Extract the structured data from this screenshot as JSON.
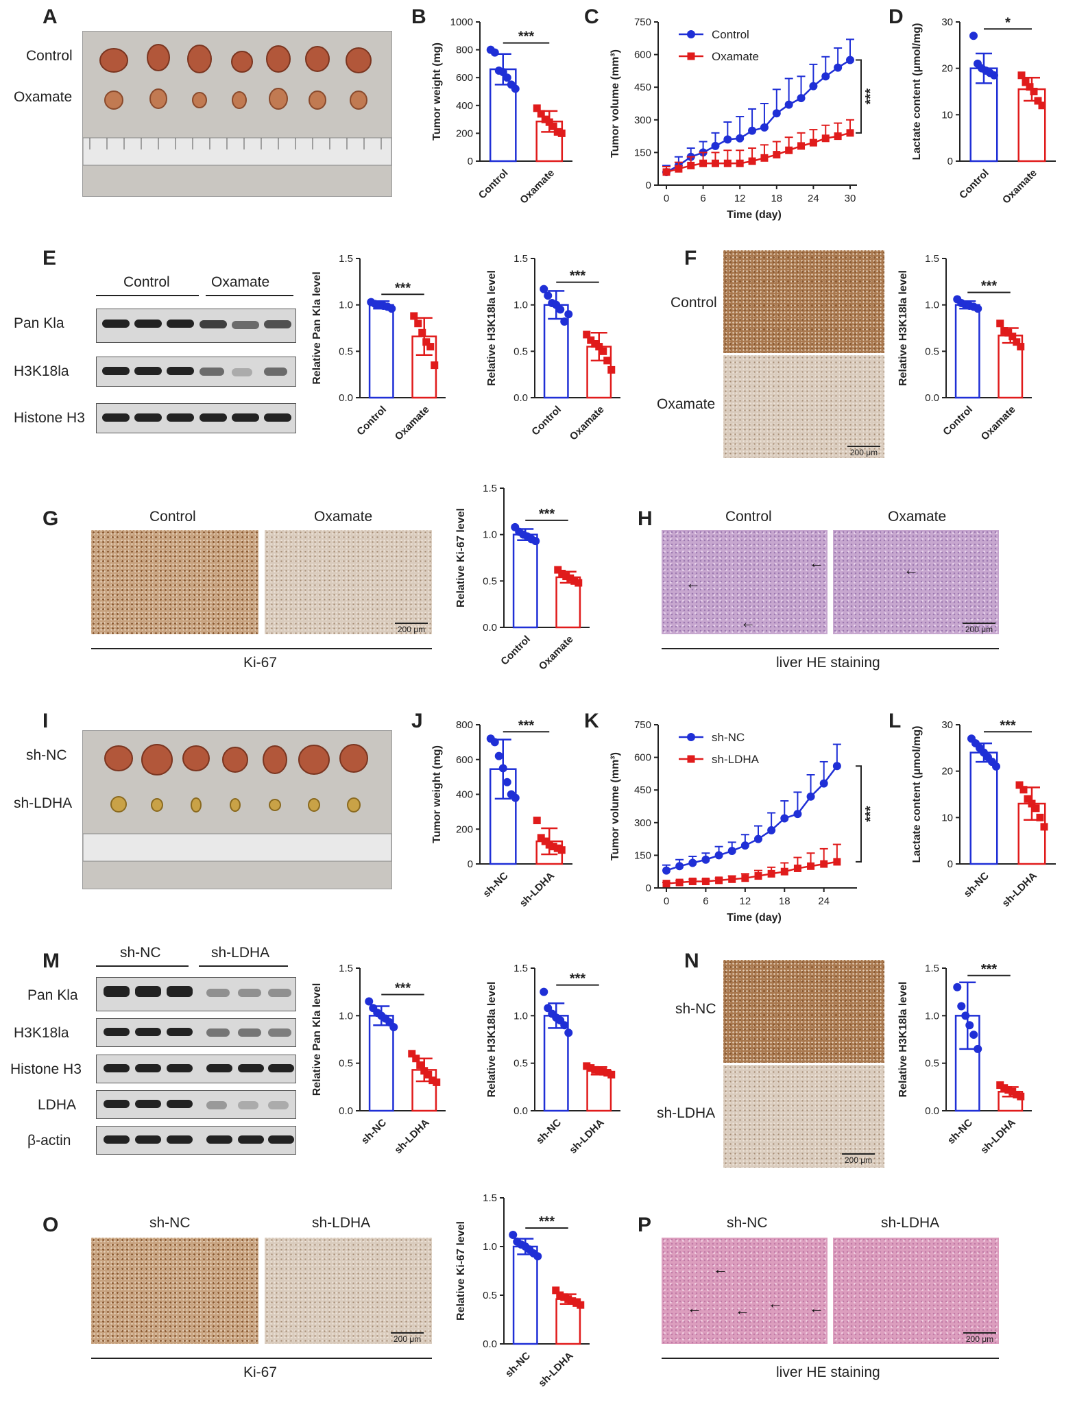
{
  "colors": {
    "control": "#1f2fd6",
    "treat": "#e01b1b",
    "axis": "#222222"
  },
  "panels": {
    "A": "A",
    "B": "B",
    "C": "C",
    "D": "D",
    "E": "E",
    "F": "F",
    "G": "G",
    "H": "H",
    "I": "I",
    "J": "J",
    "K": "K",
    "L": "L",
    "M": "M",
    "N": "N",
    "O": "O",
    "P": "P"
  },
  "panel_A": {
    "row1": "Control",
    "row2": "Oxamate"
  },
  "panel_E": {
    "group1": "Control",
    "group2": "Oxamate",
    "rows": [
      "Pan Kla",
      "H3K18la",
      "Histone H3"
    ]
  },
  "panel_F": {
    "row1": "Control",
    "row2": "Oxamate",
    "scale": "200 μm"
  },
  "panel_G": {
    "col1": "Control",
    "col2": "Oxamate",
    "caption": "Ki-67",
    "scale": "200 μm"
  },
  "panel_H": {
    "col1": "Control",
    "col2": "Oxamate",
    "caption": "liver HE staining",
    "scale": "200 μm"
  },
  "panel_I": {
    "row1": "sh-NC",
    "row2": "sh-LDHA"
  },
  "panel_M": {
    "group1": "sh-NC",
    "group2": "sh-LDHA",
    "rows": [
      "Pan Kla",
      "H3K18la",
      "Histone H3",
      "LDHA",
      "β-actin"
    ]
  },
  "panel_N": {
    "row1": "sh-NC",
    "row2": "sh-LDHA",
    "scale": "200 μm"
  },
  "panel_O": {
    "col1": "sh-NC",
    "col2": "sh-LDHA",
    "caption": "Ki-67",
    "scale": "200 μm"
  },
  "panel_P": {
    "col1": "sh-NC",
    "col2": "sh-LDHA",
    "caption": "liver HE staining",
    "scale": "200 μm"
  },
  "chart_data": [
    {
      "id": "B",
      "type": "bar",
      "ylabel": "Tumor weight (mg)",
      "ylim": [
        0,
        1000
      ],
      "yticks": [
        0,
        200,
        400,
        600,
        800,
        1000
      ],
      "categories": [
        "Control",
        "Oxamate"
      ],
      "values": [
        660,
        285
      ],
      "errors": [
        110,
        75
      ],
      "sig": "***",
      "points": [
        [
          800,
          780,
          650,
          640,
          600,
          550,
          520
        ],
        [
          380,
          340,
          300,
          280,
          250,
          210,
          200
        ]
      ]
    },
    {
      "id": "C",
      "type": "line",
      "ylabel": "Tumor volume (mm³)",
      "xlabel": "Time (day)",
      "ylim": [
        0,
        750
      ],
      "yticks": [
        0,
        150,
        300,
        450,
        600,
        750
      ],
      "xlim": [
        0,
        30
      ],
      "xticks": [
        0,
        6,
        12,
        18,
        24,
        30
      ],
      "sig": "***",
      "series": [
        {
          "name": "Control",
          "x": [
            0,
            2,
            4,
            6,
            8,
            10,
            12,
            14,
            16,
            18,
            20,
            22,
            24,
            26,
            28,
            30
          ],
          "values": [
            60,
            90,
            130,
            150,
            180,
            210,
            215,
            250,
            265,
            330,
            370,
            400,
            455,
            500,
            540,
            575
          ],
          "errors": [
            30,
            40,
            40,
            50,
            60,
            80,
            100,
            100,
            110,
            110,
            120,
            100,
            100,
            90,
            90,
            95
          ]
        },
        {
          "name": "Oxamate",
          "x": [
            0,
            2,
            4,
            6,
            8,
            10,
            12,
            14,
            16,
            18,
            20,
            22,
            24,
            26,
            28,
            30
          ],
          "values": [
            60,
            75,
            90,
            100,
            100,
            100,
            100,
            110,
            125,
            140,
            160,
            180,
            195,
            215,
            225,
            240
          ],
          "errors": [
            25,
            30,
            40,
            50,
            50,
            60,
            60,
            60,
            60,
            60,
            60,
            60,
            60,
            60,
            60,
            60
          ]
        }
      ]
    },
    {
      "id": "D",
      "type": "bar",
      "ylabel": "Lactate content (μmol/mg)",
      "ylim": [
        0,
        30
      ],
      "yticks": [
        0,
        10,
        20,
        30
      ],
      "categories": [
        "Control",
        "Oxamate"
      ],
      "values": [
        20,
        15.5
      ],
      "errors": [
        3.2,
        2.5
      ],
      "sig": "*",
      "points": [
        [
          27,
          21,
          20,
          19.5,
          19,
          18.5
        ],
        [
          18.5,
          17,
          16,
          15,
          13,
          12
        ]
      ]
    },
    {
      "id": "E1",
      "type": "bar",
      "ylabel": "Relative Pan Kla level",
      "ylim": [
        0,
        1.5
      ],
      "yticks": [
        "0.0",
        "0.5",
        "1.0",
        "1.5"
      ],
      "categories": [
        "Control",
        "Oxamate"
      ],
      "values": [
        1.0,
        0.66
      ],
      "errors": [
        0.04,
        0.2
      ],
      "sig": "***",
      "points": [
        [
          1.03,
          1.01,
          1.0,
          0.99,
          0.98,
          0.96
        ],
        [
          0.88,
          0.8,
          0.7,
          0.6,
          0.55,
          0.35
        ]
      ]
    },
    {
      "id": "E2",
      "type": "bar",
      "ylabel": "Relative H3K18la level",
      "ylim": [
        0,
        1.5
      ],
      "yticks": [
        "0.0",
        "0.5",
        "1.0",
        "1.5"
      ],
      "categories": [
        "Control",
        "Oxamate"
      ],
      "values": [
        1.0,
        0.55
      ],
      "errors": [
        0.15,
        0.15
      ],
      "sig": "***",
      "points": [
        [
          1.17,
          1.1,
          1.02,
          1.0,
          0.95,
          0.82,
          0.9
        ],
        [
          0.68,
          0.62,
          0.58,
          0.55,
          0.5,
          0.4,
          0.3
        ]
      ]
    },
    {
      "id": "F",
      "type": "bar",
      "ylabel": "Relative H3K18la level",
      "ylim": [
        0,
        1.5
      ],
      "yticks": [
        "0.0",
        "0.5",
        "1.0",
        "1.5"
      ],
      "categories": [
        "Control",
        "Oxamate"
      ],
      "values": [
        1.0,
        0.67
      ],
      "errors": [
        0.04,
        0.08
      ],
      "sig": "***",
      "points": [
        [
          1.06,
          1.02,
          1.0,
          0.99,
          0.98,
          0.96
        ],
        [
          0.8,
          0.72,
          0.7,
          0.66,
          0.6,
          0.55
        ]
      ]
    },
    {
      "id": "G",
      "type": "bar",
      "ylabel": "Relative Ki-67 level",
      "ylim": [
        0,
        1.5
      ],
      "yticks": [
        "0.0",
        "0.5",
        "1.0",
        "1.5"
      ],
      "categories": [
        "Control",
        "Oxamate"
      ],
      "values": [
        1.0,
        0.54
      ],
      "errors": [
        0.06,
        0.06
      ],
      "sig": "***",
      "points": [
        [
          1.08,
          1.03,
          1.0,
          0.98,
          0.95,
          0.93
        ],
        [
          0.62,
          0.58,
          0.55,
          0.53,
          0.5,
          0.48
        ]
      ]
    },
    {
      "id": "J",
      "type": "bar",
      "ylabel": "Tumor weight (mg)",
      "ylim": [
        0,
        800
      ],
      "yticks": [
        0,
        200,
        400,
        600,
        800
      ],
      "categories": [
        "sh-NC",
        "sh-LDHA"
      ],
      "values": [
        545,
        130
      ],
      "errors": [
        170,
        75
      ],
      "sig": "***",
      "points": [
        [
          720,
          700,
          620,
          550,
          470,
          400,
          380
        ],
        [
          250,
          150,
          130,
          110,
          100,
          90,
          80
        ]
      ]
    },
    {
      "id": "K",
      "type": "line",
      "ylabel": "Tumor volume (mm³)",
      "xlabel": "Time (day)",
      "ylim": [
        0,
        750
      ],
      "yticks": [
        0,
        150,
        300,
        450,
        600,
        750
      ],
      "xlim": [
        0,
        28
      ],
      "xticks": [
        0,
        6,
        12,
        18,
        24
      ],
      "sig": "***",
      "series": [
        {
          "name": "sh-NC",
          "x": [
            0,
            2,
            4,
            6,
            8,
            10,
            12,
            14,
            16,
            18,
            20,
            22,
            24,
            26
          ],
          "values": [
            80,
            100,
            115,
            130,
            150,
            170,
            195,
            225,
            265,
            320,
            340,
            420,
            480,
            560
          ],
          "errors": [
            25,
            30,
            30,
            30,
            40,
            40,
            50,
            60,
            80,
            80,
            100,
            100,
            100,
            100
          ]
        },
        {
          "name": "sh-LDHA",
          "x": [
            0,
            2,
            4,
            6,
            8,
            10,
            12,
            14,
            16,
            18,
            20,
            22,
            24,
            26
          ],
          "values": [
            20,
            25,
            30,
            30,
            35,
            40,
            45,
            55,
            65,
            75,
            90,
            100,
            110,
            120
          ],
          "errors": [
            5,
            8,
            10,
            10,
            10,
            15,
            20,
            25,
            30,
            40,
            50,
            60,
            70,
            80
          ]
        }
      ]
    },
    {
      "id": "L",
      "type": "bar",
      "ylabel": "Lactate content (μmol/mg)",
      "ylim": [
        0,
        30
      ],
      "yticks": [
        0,
        10,
        20,
        30
      ],
      "categories": [
        "sh-NC",
        "sh-LDHA"
      ],
      "values": [
        24,
        13
      ],
      "errors": [
        2,
        3.5
      ],
      "sig": "***",
      "points": [
        [
          27,
          26,
          25,
          24,
          23,
          22,
          21
        ],
        [
          17,
          16,
          14,
          13,
          12,
          10,
          8
        ]
      ]
    },
    {
      "id": "M1",
      "type": "bar",
      "ylabel": "Relative Pan Kla level",
      "ylim": [
        0,
        1.5
      ],
      "yticks": [
        "0.0",
        "0.5",
        "1.0",
        "1.5"
      ],
      "categories": [
        "sh-NC",
        "sh-LDHA"
      ],
      "values": [
        1.0,
        0.43
      ],
      "errors": [
        0.1,
        0.12
      ],
      "sig": "***",
      "points": [
        [
          1.15,
          1.08,
          1.03,
          1.0,
          0.97,
          0.93,
          0.88
        ],
        [
          0.6,
          0.55,
          0.48,
          0.42,
          0.38,
          0.32,
          0.3
        ]
      ]
    },
    {
      "id": "M2",
      "type": "bar",
      "ylabel": "Relative H3K18la level",
      "ylim": [
        0,
        1.5
      ],
      "yticks": [
        "0.0",
        "0.5",
        "1.0",
        "1.5"
      ],
      "categories": [
        "sh-NC",
        "sh-LDHA"
      ],
      "values": [
        1.0,
        0.42
      ],
      "errors": [
        0.13,
        0.04
      ],
      "sig": "***",
      "points": [
        [
          1.25,
          1.08,
          1.02,
          0.98,
          0.95,
          0.9,
          0.82
        ],
        [
          0.47,
          0.45,
          0.43,
          0.42,
          0.41,
          0.4,
          0.38
        ]
      ]
    },
    {
      "id": "N",
      "type": "bar",
      "ylabel": "Relative H3K18la level",
      "ylim": [
        0,
        1.5
      ],
      "yticks": [
        "0.0",
        "0.5",
        "1.0",
        "1.5"
      ],
      "categories": [
        "sh-NC",
        "sh-LDHA"
      ],
      "values": [
        1.0,
        0.2
      ],
      "errors": [
        0.35,
        0.05
      ],
      "sig": "***",
      "points": [
        [
          1.3,
          1.1,
          1.0,
          0.9,
          0.8,
          0.65
        ],
        [
          0.27,
          0.24,
          0.22,
          0.2,
          0.17,
          0.15
        ]
      ]
    },
    {
      "id": "O",
      "type": "bar",
      "ylabel": "Relative Ki-67 level",
      "ylim": [
        0,
        1.5
      ],
      "yticks": [
        "0.0",
        "0.5",
        "1.0",
        "1.5"
      ],
      "categories": [
        "sh-NC",
        "sh-LDHA"
      ],
      "values": [
        1.0,
        0.46
      ],
      "errors": [
        0.08,
        0.05
      ],
      "sig": "***",
      "points": [
        [
          1.12,
          1.05,
          1.02,
          1.0,
          0.97,
          0.93,
          0.9
        ],
        [
          0.55,
          0.5,
          0.48,
          0.46,
          0.44,
          0.42,
          0.4
        ]
      ]
    }
  ]
}
